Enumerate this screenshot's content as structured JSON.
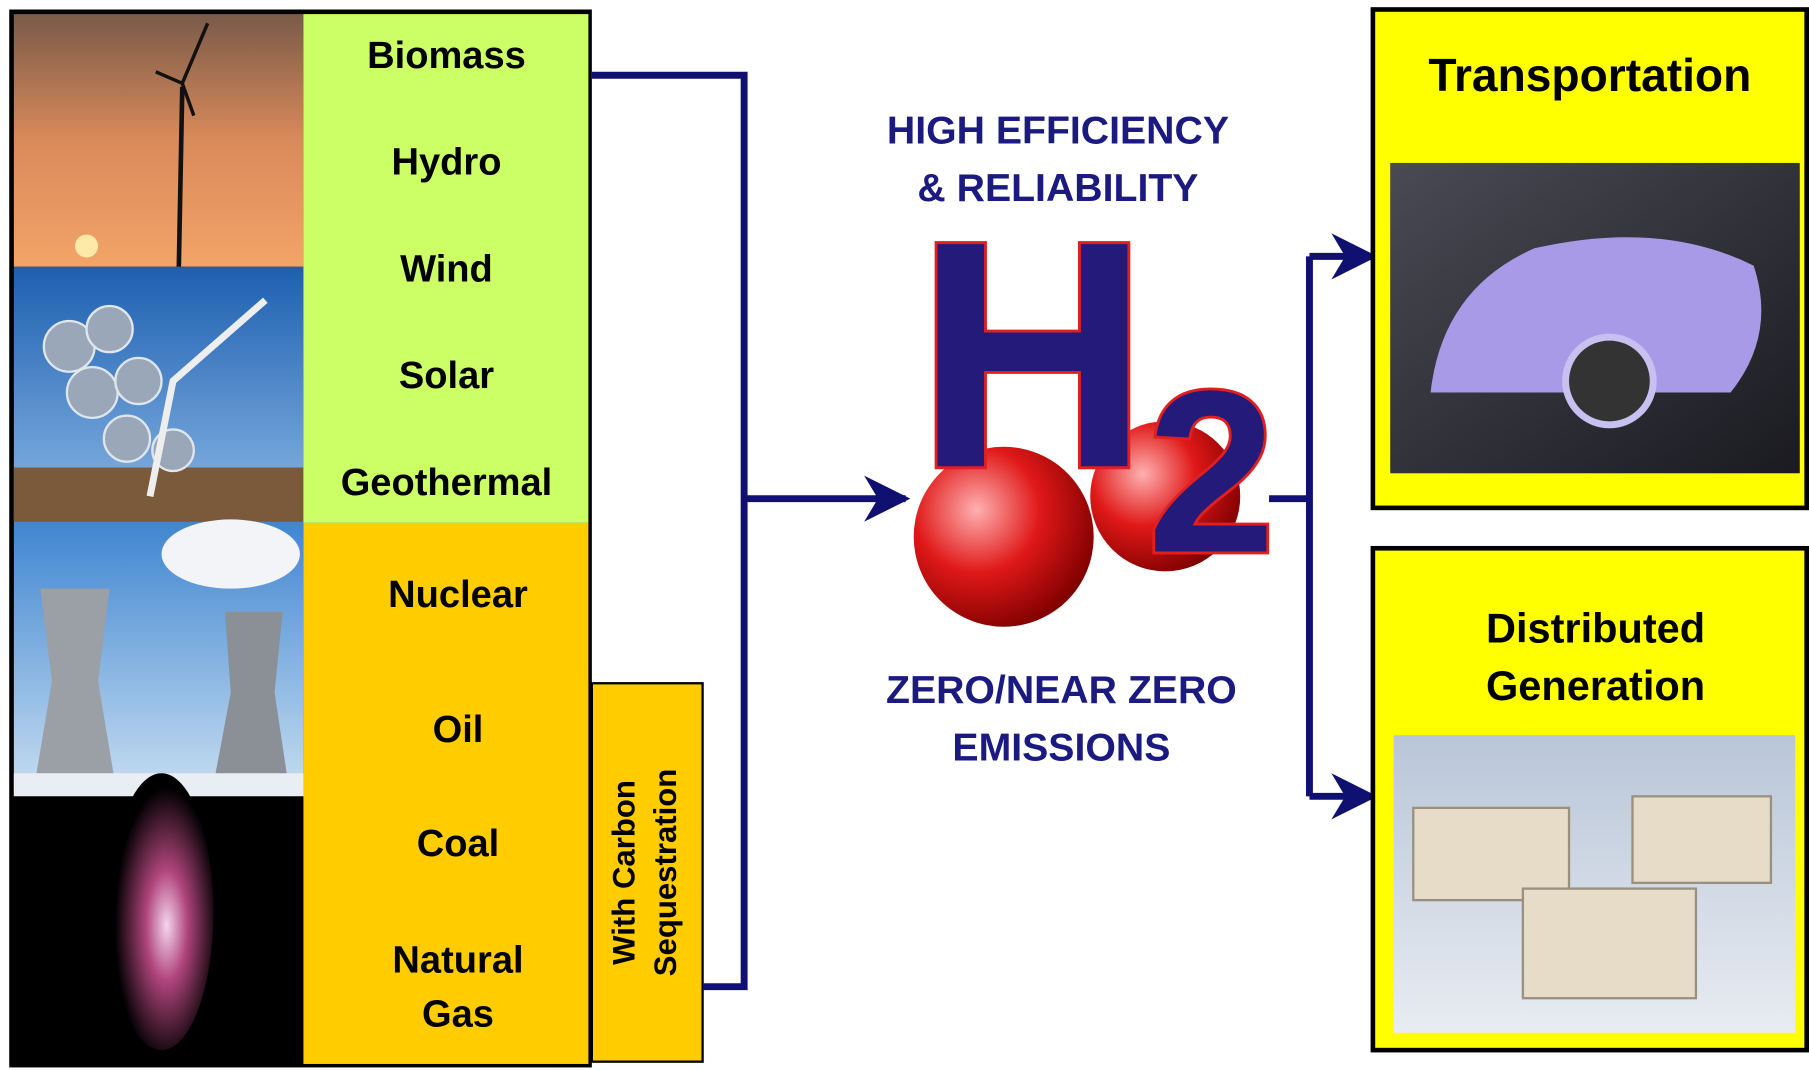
{
  "sources": {
    "renewable": [
      "Biomass",
      "Hydro",
      "Wind",
      "Solar",
      "Geothermal"
    ],
    "fossil": [
      [
        "Nuclear"
      ],
      [
        "Oil"
      ],
      [
        "Coal"
      ],
      [
        "Natural",
        "Gas"
      ]
    ],
    "sequestration": [
      "With Carbon",
      "Sequestration"
    ]
  },
  "center": {
    "top": [
      "HIGH EFFICIENCY",
      "& RELIABILITY"
    ],
    "symbol": "H",
    "subscript": "2",
    "bottom": [
      "ZERO/NEAR ZERO",
      "EMISSIONS"
    ]
  },
  "outputs": [
    [
      "Transportation"
    ],
    [
      "Distributed",
      "Generation"
    ]
  ]
}
